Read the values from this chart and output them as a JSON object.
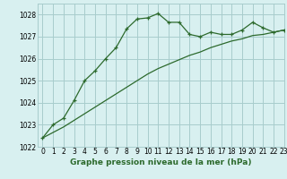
{
  "line1_x": [
    0,
    1,
    2,
    3,
    4,
    5,
    6,
    7,
    8,
    9,
    10,
    11,
    12,
    13,
    14,
    15,
    16,
    17,
    18,
    19,
    20,
    21,
    22,
    23
  ],
  "line1_y": [
    1022.4,
    1023.0,
    1023.3,
    1024.1,
    1025.0,
    1025.45,
    1026.0,
    1026.5,
    1027.35,
    1027.8,
    1027.85,
    1028.05,
    1027.65,
    1027.65,
    1027.1,
    1027.0,
    1027.2,
    1027.1,
    1027.1,
    1027.3,
    1027.65,
    1027.4,
    1027.2,
    1027.3
  ],
  "line2_x": [
    0,
    1,
    2,
    3,
    4,
    5,
    6,
    7,
    8,
    9,
    10,
    11,
    12,
    13,
    14,
    15,
    16,
    17,
    18,
    19,
    20,
    21,
    22,
    23
  ],
  "line2_y": [
    1022.4,
    1022.65,
    1022.9,
    1023.2,
    1023.5,
    1023.8,
    1024.1,
    1024.4,
    1024.7,
    1025.0,
    1025.3,
    1025.55,
    1025.75,
    1025.95,
    1026.15,
    1026.3,
    1026.5,
    1026.65,
    1026.8,
    1026.9,
    1027.05,
    1027.1,
    1027.2,
    1027.3
  ],
  "line_color": "#2d6a2d",
  "bg_color": "#d8f0f0",
  "grid_color": "#a8cccc",
  "xlabel": "Graphe pression niveau de la mer (hPa)",
  "ylim": [
    1022,
    1028.5
  ],
  "xlim": [
    -0.5,
    23
  ],
  "yticks": [
    1022,
    1023,
    1024,
    1025,
    1026,
    1027,
    1028
  ],
  "xticks": [
    0,
    1,
    2,
    3,
    4,
    5,
    6,
    7,
    8,
    9,
    10,
    11,
    12,
    13,
    14,
    15,
    16,
    17,
    18,
    19,
    20,
    21,
    22,
    23
  ],
  "tick_fontsize": 5.5,
  "xlabel_fontsize": 6.5
}
